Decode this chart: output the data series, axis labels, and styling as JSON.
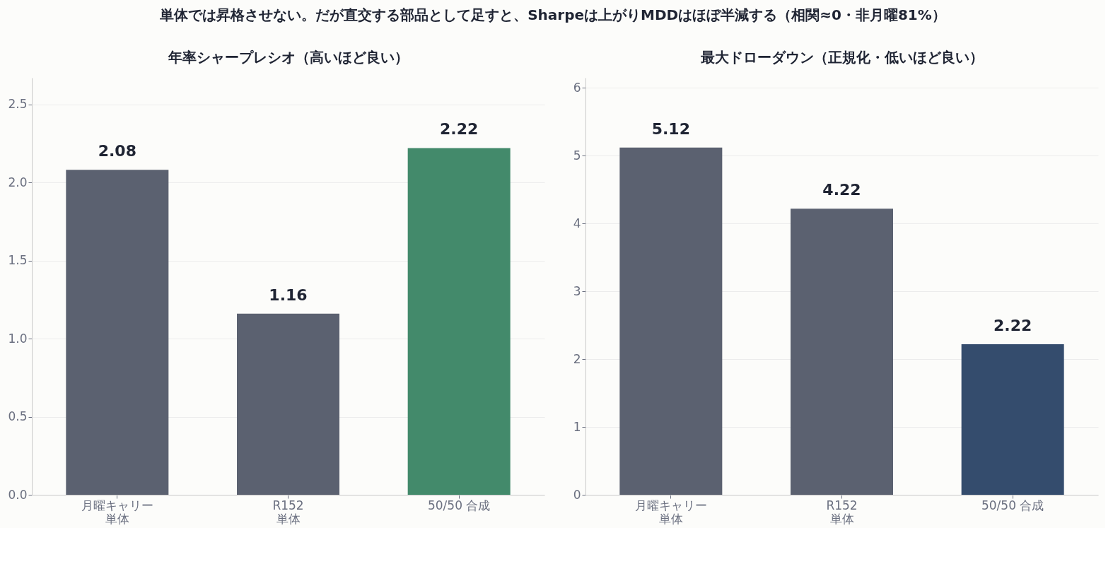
{
  "chart_data": [
    {
      "type": "bar",
      "title": "年率シャープレシオ（高いほど良い）",
      "annotations": [
        "単体では昇格させない。だが直交する部品として足すと、Sharpeは上がりMDDはほぼ半減する（相関≈0・非月曜81%）"
      ],
      "categories": [
        "月曜キャリー単体",
        "R152単体",
        "50/50 合成"
      ],
      "values": [
        2.08,
        1.16,
        2.22
      ],
      "colors": [
        "#5b6170",
        "#5b6170",
        "#438a6b"
      ],
      "ylim": [
        0,
        2.67
      ],
      "yticks": [
        {
          "value": 0,
          "label": "0.0"
        },
        0.5,
        {
          "value": 1,
          "label": "1.0"
        },
        1.5,
        {
          "value": 2,
          "label": "2.0"
        },
        2.5
      ],
      "grid": "y",
      "data_labels": true
    },
    {
      "type": "bar",
      "title": "最大ドローダウン（正規化・低いほど良い）",
      "categories": [
        "月曜キャリー単体",
        "R152単体",
        "50/50 合成"
      ],
      "values": [
        5.12,
        4.22,
        2.22
      ],
      "colors": [
        "#5b6170",
        "#5b6170",
        "#344c6d"
      ],
      "ylim": [
        0,
        6.15
      ],
      "yticks": [
        0,
        1,
        2,
        3,
        4,
        5,
        6
      ],
      "grid": "y",
      "data_labels": true
    }
  ]
}
